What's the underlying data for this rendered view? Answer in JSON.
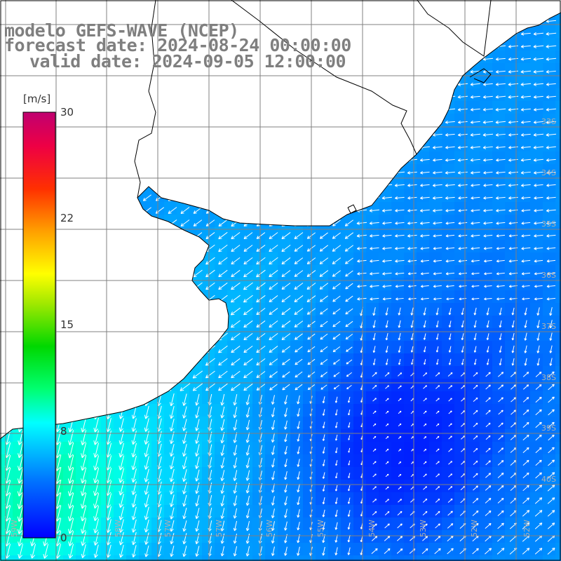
{
  "title": {
    "model": "modelo GEFS-WAVE (NCEP)",
    "forecast": "forecast date: 2024-08-24 00:00:00",
    "valid": "valid date: 2024-09-05 12:00:00"
  },
  "colorbar": {
    "unit": "[m/s]",
    "ticks": [
      "30",
      "22",
      "15",
      "8",
      "0"
    ],
    "tick_values": [
      30,
      22,
      15,
      8,
      0
    ],
    "colors": [
      "#0000ff",
      "#00a0ff",
      "#00ffff",
      "#00ff60",
      "#00c800",
      "#80e000",
      "#ffff00",
      "#ffa000",
      "#ff4000",
      "#ff0000",
      "#c00060"
    ]
  },
  "map": {
    "land_color": "#ffffff",
    "grid_color": "#808080",
    "coast_color": "#000000",
    "lat_labels": [
      "33S",
      "34S",
      "35S",
      "36S",
      "37S",
      "38S",
      "39S",
      "40S"
    ],
    "lon_labels": [
      "58W",
      "57W",
      "56W",
      "55W",
      "54W",
      "53W",
      "52W"
    ],
    "lon_label_extra": [
      "59W",
      "57W",
      "56W",
      "52W"
    ]
  },
  "chart_data": {
    "type": "heatmap",
    "variable": "wind speed",
    "unit": "m/s",
    "scale_range": [
      0,
      30
    ],
    "field_summary": [
      {
        "region": "southwest coast",
        "value": 8
      },
      {
        "region": "estuary and central",
        "value": 5
      },
      {
        "region": "southeast open ocean",
        "value": 2
      }
    ],
    "arrows": "wind direction vectors"
  }
}
